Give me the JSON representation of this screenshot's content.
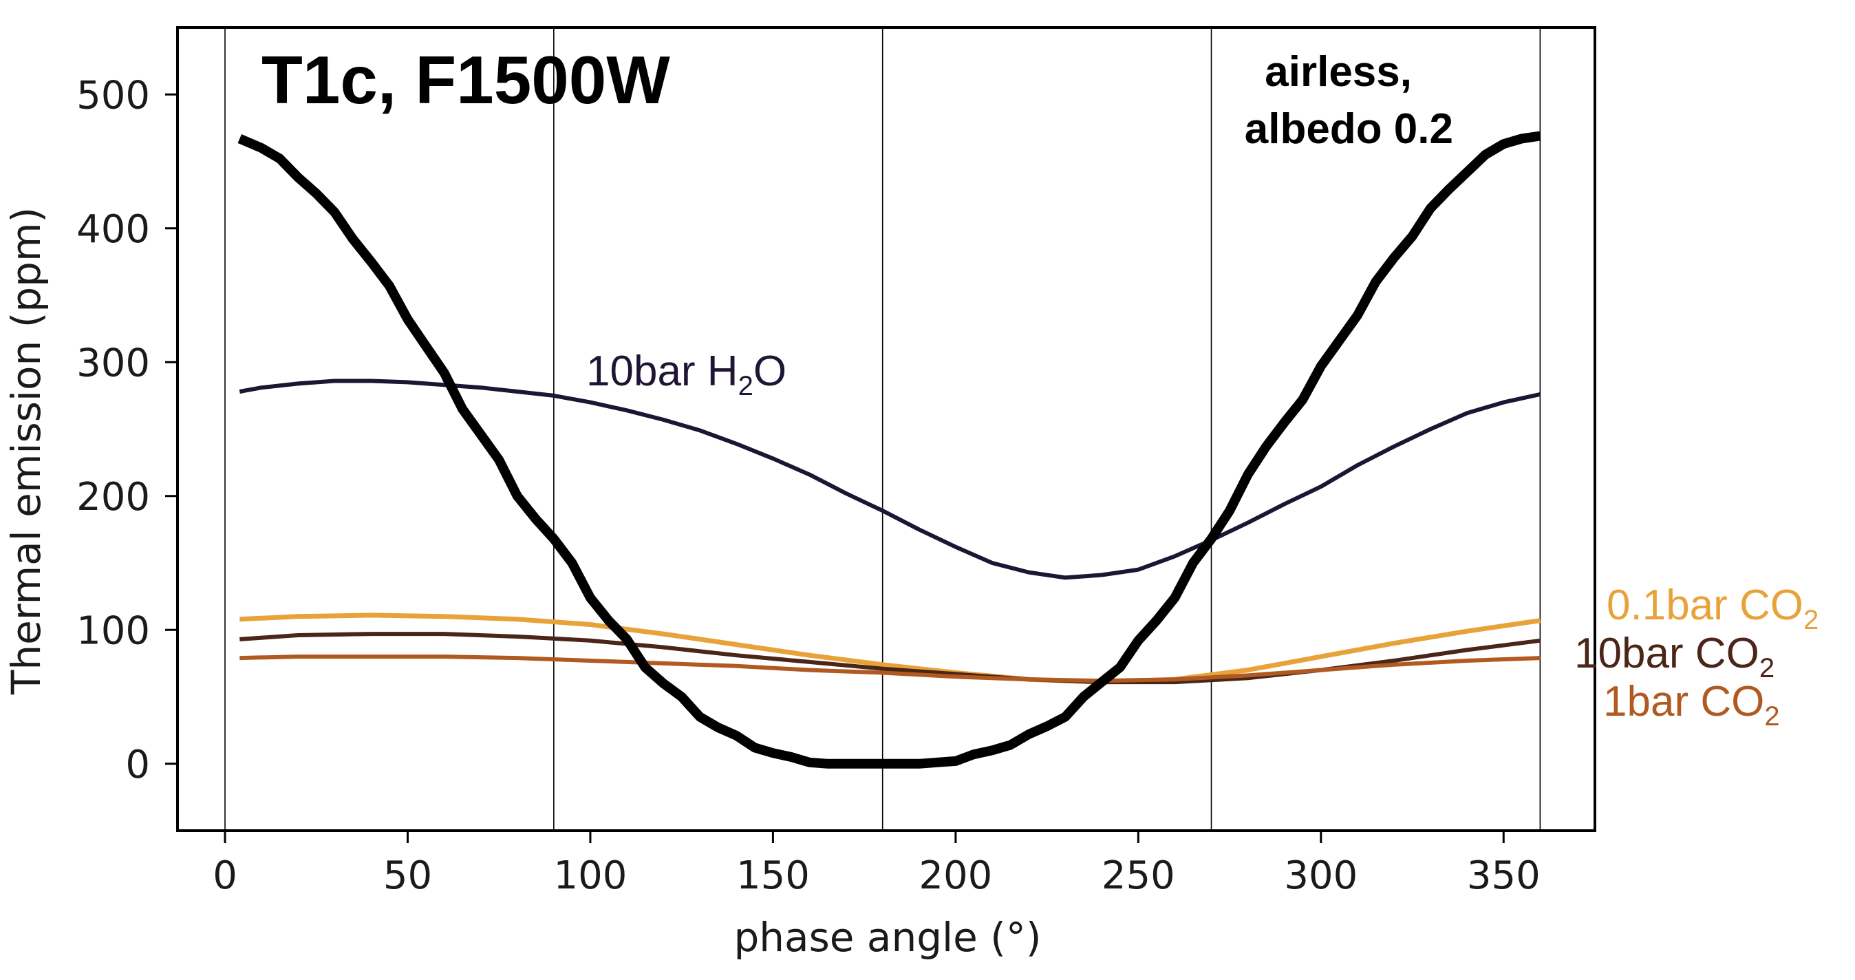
{
  "chart_data": {
    "type": "line",
    "title": "T1c, F1500W",
    "xlabel": "phase angle (°)",
    "ylabel": "Thermal emission (ppm)",
    "xlim": [
      -13,
      375
    ],
    "ylim": [
      -50,
      550
    ],
    "xticks": [
      0,
      50,
      100,
      150,
      200,
      250,
      300,
      350
    ],
    "yticks": [
      0,
      100,
      200,
      300,
      400,
      500
    ],
    "vlines": [
      0,
      90,
      180,
      270,
      360
    ],
    "annotations": {
      "airless_line1": "airless,",
      "airless_line2": "albedo 0.2"
    },
    "series": [
      {
        "name": "airless, albedo 0.2",
        "color": "#000000",
        "x": [
          4,
          10,
          15,
          20,
          25,
          30,
          35,
          40,
          45,
          50,
          55,
          60,
          65,
          70,
          75,
          80,
          85,
          90,
          95,
          100,
          105,
          110,
          115,
          120,
          125,
          130,
          135,
          140,
          145,
          150,
          155,
          160,
          165,
          170,
          175,
          180,
          185,
          190,
          195,
          200,
          205,
          210,
          215,
          220,
          225,
          230,
          235,
          240,
          245,
          250,
          255,
          260,
          265,
          270,
          275,
          280,
          285,
          290,
          295,
          300,
          305,
          310,
          315,
          320,
          325,
          330,
          335,
          340,
          345,
          350,
          355,
          360
        ],
        "y": [
          467,
          460,
          452,
          438,
          426,
          412,
          392,
          375,
          357,
          332,
          312,
          292,
          265,
          246,
          227,
          200,
          183,
          168,
          150,
          124,
          107,
          93,
          72,
          60,
          50,
          35,
          27,
          21,
          12,
          8,
          5,
          1,
          0,
          0,
          0,
          0,
          0,
          0,
          1,
          2,
          7,
          10,
          14,
          22,
          28,
          35,
          50,
          61,
          72,
          92,
          107,
          124,
          150,
          168,
          189,
          216,
          237,
          255,
          272,
          297,
          316,
          335,
          360,
          378,
          394,
          415,
          429,
          442,
          455,
          463,
          467,
          469
        ]
      },
      {
        "name": "10bar H2O",
        "label_main": "10bar H",
        "label_sub": "2",
        "label_tail": "O",
        "color": "#1e1433",
        "x": [
          4,
          10,
          20,
          30,
          40,
          50,
          60,
          70,
          80,
          90,
          100,
          110,
          120,
          130,
          140,
          150,
          160,
          170,
          180,
          190,
          200,
          210,
          220,
          230,
          240,
          250,
          260,
          270,
          280,
          290,
          300,
          310,
          320,
          330,
          340,
          350,
          360
        ],
        "y": [
          278,
          281,
          284,
          286,
          286,
          285,
          283,
          281,
          278,
          275,
          270,
          264,
          257,
          249,
          239,
          228,
          216,
          202,
          189,
          175,
          162,
          150,
          143,
          139,
          141,
          145,
          155,
          167,
          180,
          194,
          207,
          223,
          237,
          250,
          262,
          270,
          276
        ]
      },
      {
        "name": "0.1bar CO2",
        "label_main": "0.1bar CO",
        "label_sub": "2",
        "color": "#e8a23a",
        "x": [
          4,
          20,
          40,
          60,
          80,
          100,
          120,
          140,
          160,
          180,
          200,
          220,
          240,
          260,
          280,
          300,
          320,
          340,
          360
        ],
        "y": [
          108,
          110,
          111,
          110,
          108,
          104,
          97,
          89,
          81,
          74,
          68,
          63,
          61,
          63,
          70,
          80,
          90,
          99,
          107
        ]
      },
      {
        "name": "10bar CO2",
        "label_main": "10bar CO",
        "label_sub": "2",
        "color": "#4a2518",
        "x": [
          4,
          20,
          40,
          60,
          80,
          100,
          120,
          140,
          160,
          180,
          200,
          220,
          240,
          260,
          280,
          300,
          320,
          340,
          360
        ],
        "y": [
          93,
          96,
          97,
          97,
          95,
          92,
          87,
          81,
          76,
          71,
          67,
          63,
          61,
          61,
          64,
          70,
          77,
          85,
          92
        ]
      },
      {
        "name": "1bar CO2",
        "label_main": "1bar CO",
        "label_sub": "2",
        "color": "#b05a22",
        "x": [
          4,
          20,
          40,
          60,
          80,
          100,
          120,
          140,
          160,
          180,
          200,
          220,
          240,
          260,
          280,
          300,
          320,
          340,
          360
        ],
        "y": [
          79,
          80,
          80,
          80,
          79,
          77,
          75,
          73,
          70,
          68,
          65,
          63,
          62,
          63,
          66,
          70,
          74,
          77,
          79
        ]
      }
    ]
  }
}
